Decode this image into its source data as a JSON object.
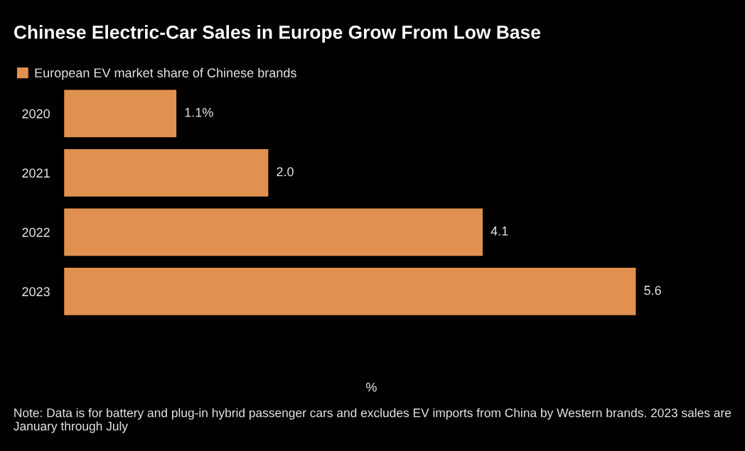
{
  "chart_data": {
    "type": "bar",
    "orientation": "horizontal",
    "title": "Chinese Electric-Car Sales in Europe Grow From Low Base",
    "categories": [
      "2020",
      "2021",
      "2022",
      "2023"
    ],
    "series": [
      {
        "name": "European EV market share of Chinese brands",
        "color": "#e0914f",
        "values": [
          1.1,
          2.0,
          4.1,
          5.6
        ],
        "value_labels": [
          "1.1%",
          "2.0",
          "4.1",
          "5.6"
        ]
      }
    ],
    "xlabel": "%",
    "tick_labels": "y",
    "legend": "top left",
    "grid": false,
    "annotations": [
      "Note: Data is for battery and plug-in hybrid passenger cars and excludes EV imports from China by Western brands. 2023 sales are January through July"
    ]
  }
}
